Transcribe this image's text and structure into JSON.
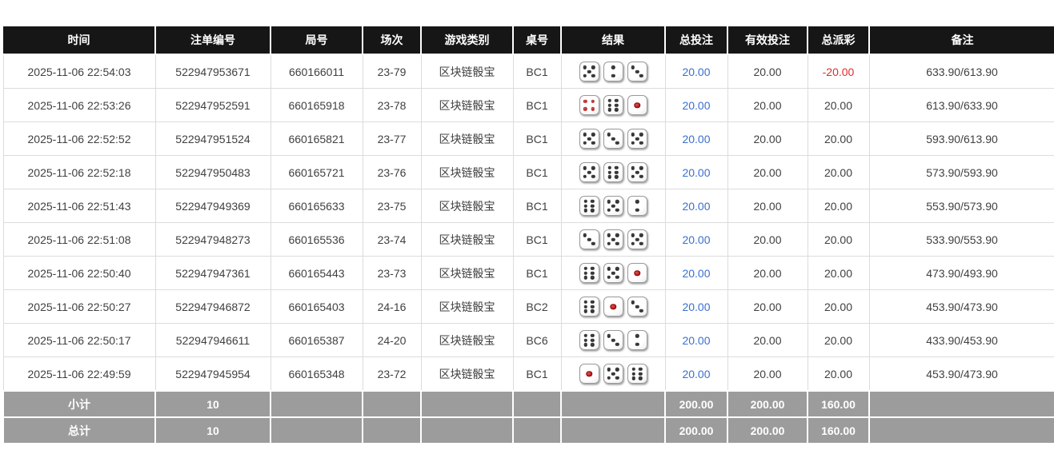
{
  "colors": {
    "link_blue": "#3a6fd0",
    "negative_red": "#e02b2b",
    "header_bg": "#161616",
    "footer_bg": "#9c9c9c"
  },
  "table": {
    "headers": [
      "时间",
      "注单编号",
      "局号",
      "场次",
      "游戏类别",
      "桌号",
      "结果",
      "总投注",
      "有效投注",
      "总派彩",
      "备注"
    ],
    "rows": [
      {
        "time": "2025-11-06 22:54:03",
        "bet_id": "522947953671",
        "round": "660166011",
        "session": "23-79",
        "game": "区块链骰宝",
        "table_no": "BC1",
        "dice": [
          5,
          2,
          3
        ],
        "total_bet": "20.00",
        "valid_bet": "20.00",
        "payout": "-20.00",
        "remark": "633.90/613.90"
      },
      {
        "time": "2025-11-06 22:53:26",
        "bet_id": "522947952591",
        "round": "660165918",
        "session": "23-78",
        "game": "区块链骰宝",
        "table_no": "BC1",
        "dice": [
          4,
          6,
          1
        ],
        "total_bet": "20.00",
        "valid_bet": "20.00",
        "payout": "20.00",
        "remark": "613.90/633.90"
      },
      {
        "time": "2025-11-06 22:52:52",
        "bet_id": "522947951524",
        "round": "660165821",
        "session": "23-77",
        "game": "区块链骰宝",
        "table_no": "BC1",
        "dice": [
          5,
          3,
          5
        ],
        "total_bet": "20.00",
        "valid_bet": "20.00",
        "payout": "20.00",
        "remark": "593.90/613.90"
      },
      {
        "time": "2025-11-06 22:52:18",
        "bet_id": "522947950483",
        "round": "660165721",
        "session": "23-76",
        "game": "区块链骰宝",
        "table_no": "BC1",
        "dice": [
          5,
          6,
          5
        ],
        "total_bet": "20.00",
        "valid_bet": "20.00",
        "payout": "20.00",
        "remark": "573.90/593.90"
      },
      {
        "time": "2025-11-06 22:51:43",
        "bet_id": "522947949369",
        "round": "660165633",
        "session": "23-75",
        "game": "区块链骰宝",
        "table_no": "BC1",
        "dice": [
          6,
          5,
          2
        ],
        "total_bet": "20.00",
        "valid_bet": "20.00",
        "payout": "20.00",
        "remark": "553.90/573.90"
      },
      {
        "time": "2025-11-06 22:51:08",
        "bet_id": "522947948273",
        "round": "660165536",
        "session": "23-74",
        "game": "区块链骰宝",
        "table_no": "BC1",
        "dice": [
          3,
          5,
          5
        ],
        "total_bet": "20.00",
        "valid_bet": "20.00",
        "payout": "20.00",
        "remark": "533.90/553.90"
      },
      {
        "time": "2025-11-06 22:50:40",
        "bet_id": "522947947361",
        "round": "660165443",
        "session": "23-73",
        "game": "区块链骰宝",
        "table_no": "BC1",
        "dice": [
          6,
          5,
          1
        ],
        "total_bet": "20.00",
        "valid_bet": "20.00",
        "payout": "20.00",
        "remark": "473.90/493.90"
      },
      {
        "time": "2025-11-06 22:50:27",
        "bet_id": "522947946872",
        "round": "660165403",
        "session": "24-16",
        "game": "区块链骰宝",
        "table_no": "BC2",
        "dice": [
          6,
          1,
          3
        ],
        "total_bet": "20.00",
        "valid_bet": "20.00",
        "payout": "20.00",
        "remark": "453.90/473.90"
      },
      {
        "time": "2025-11-06 22:50:17",
        "bet_id": "522947946611",
        "round": "660165387",
        "session": "24-20",
        "game": "区块链骰宝",
        "table_no": "BC6",
        "dice": [
          6,
          3,
          2
        ],
        "total_bet": "20.00",
        "valid_bet": "20.00",
        "payout": "20.00",
        "remark": "433.90/453.90"
      },
      {
        "time": "2025-11-06 22:49:59",
        "bet_id": "522947945954",
        "round": "660165348",
        "session": "23-72",
        "game": "区块链骰宝",
        "table_no": "BC1",
        "dice": [
          1,
          5,
          6
        ],
        "total_bet": "20.00",
        "valid_bet": "20.00",
        "payout": "20.00",
        "remark": "453.90/473.90"
      }
    ],
    "subtotal": {
      "label": "小计",
      "count": "10",
      "total_bet": "200.00",
      "valid_bet": "200.00",
      "payout": "160.00"
    },
    "total": {
      "label": "总计",
      "count": "10",
      "total_bet": "200.00",
      "valid_bet": "200.00",
      "payout": "160.00"
    }
  }
}
